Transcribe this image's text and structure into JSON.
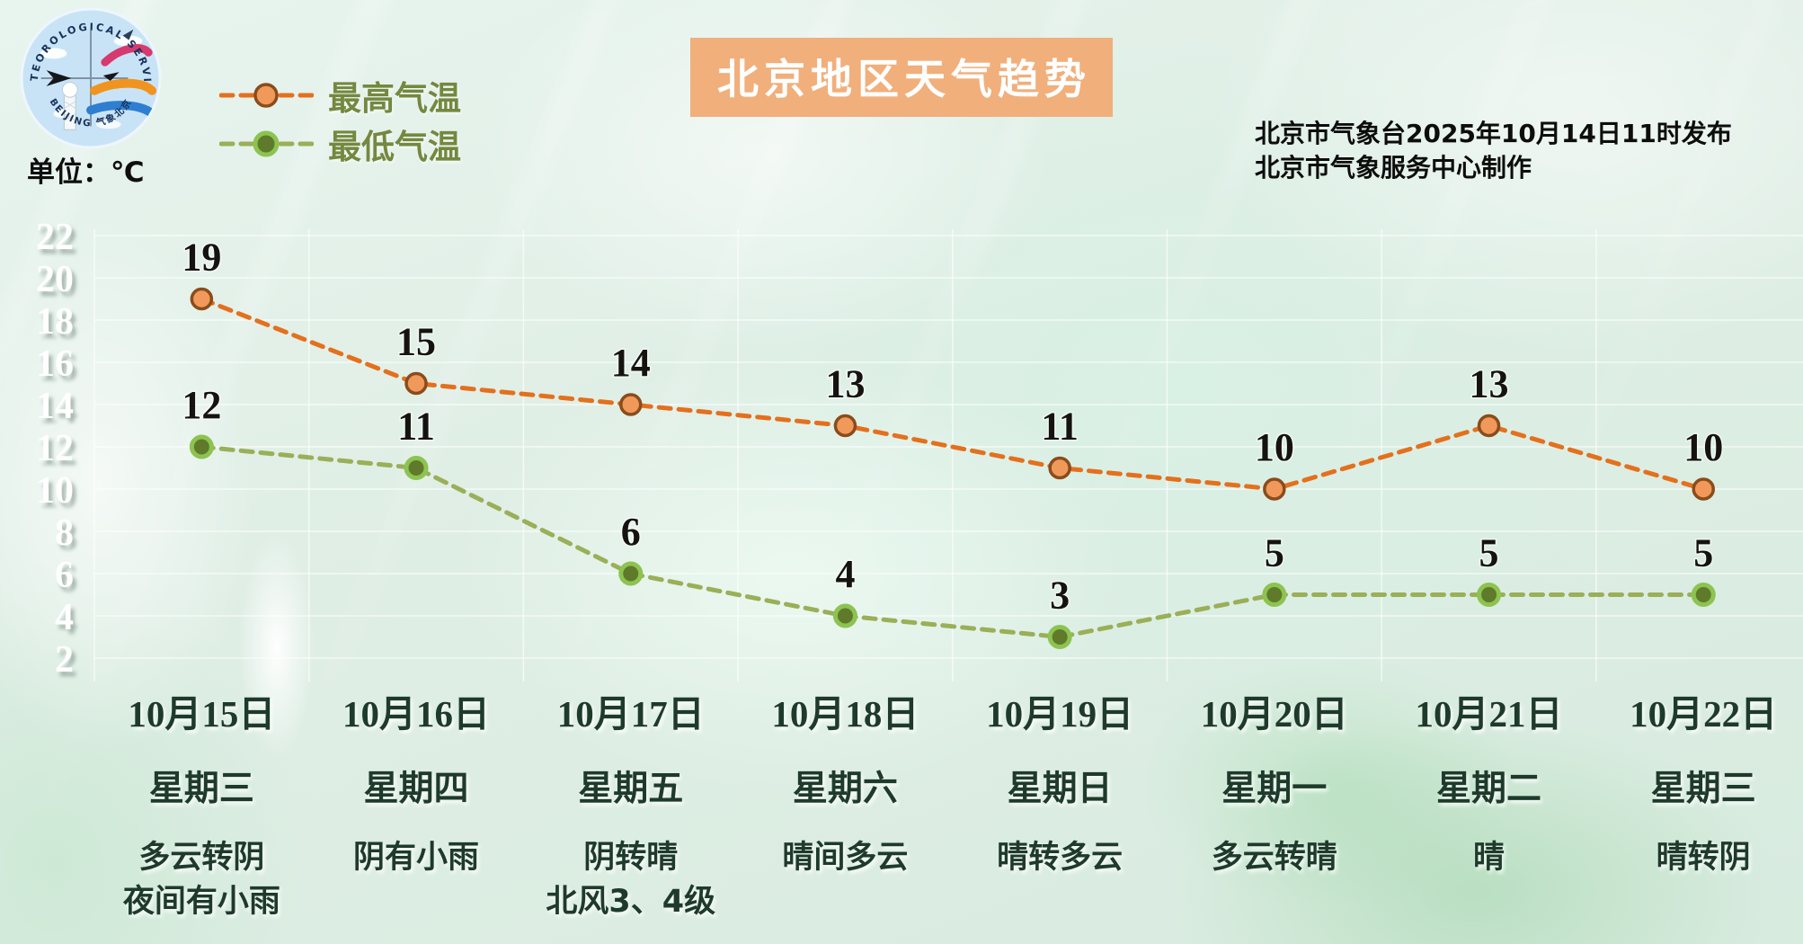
{
  "header": {
    "title": "北京地区天气趋势",
    "unit_label": "单位：℃",
    "issued_line1": "北京市气象台2025年10月14日11时发布",
    "issued_line2": "北京市气象服务中心制作",
    "logo_text_top": "METEOROLOGICAL SERVICE",
    "logo_text_bottom": "BEIJING 气象北京"
  },
  "chart_data": {
    "type": "line",
    "title": "北京地区天气趋势",
    "unit": "℃",
    "categories": [
      "10月15日",
      "10月16日",
      "10月17日",
      "10月18日",
      "10月19日",
      "10月20日",
      "10月21日",
      "10月22日"
    ],
    "weekdays": [
      "星期三",
      "星期四",
      "星期五",
      "星期六",
      "星期日",
      "星期一",
      "星期二",
      "星期三"
    ],
    "weather": [
      [
        "多云转阴",
        "夜间有小雨"
      ],
      [
        "阴有小雨"
      ],
      [
        "阴转晴",
        "北风3、4级"
      ],
      [
        "晴间多云"
      ],
      [
        "晴转多云"
      ],
      [
        "多云转晴"
      ],
      [
        "晴"
      ],
      [
        "晴转阴"
      ]
    ],
    "series": [
      {
        "name": "最高气温",
        "values": [
          19,
          15,
          14,
          13,
          11,
          10,
          13,
          10
        ],
        "line_color": "#e4701d",
        "marker_fill": "#f0995a",
        "marker_stroke": "#8a4c1b",
        "marker_stroke_width": 3.5
      },
      {
        "name": "最低气温",
        "values": [
          12,
          11,
          6,
          4,
          3,
          5,
          5,
          5
        ],
        "line_color": "#9aaf57",
        "marker_fill": "#5f7a2a",
        "marker_stroke": "#8dc351",
        "marker_stroke_width": 5
      }
    ],
    "yticks": [
      22,
      20,
      18,
      16,
      14,
      12,
      10,
      8,
      6,
      4,
      2
    ],
    "ylim": [
      1,
      23
    ],
    "grid": true,
    "legend_position": "top-left",
    "label_color": "#151310",
    "ytick_color": "#ffffff",
    "axis_text_color": "#1e3a2b"
  },
  "colors": {
    "background": "#e0efe6",
    "title_bg": "#f1af7b",
    "title_text": "#ffffff",
    "legend_text": "#74883f",
    "issued_text": "#0d0d0d",
    "axis_text": "#1e3a2b",
    "gridline": "rgba(255,255,255,0.65)"
  }
}
